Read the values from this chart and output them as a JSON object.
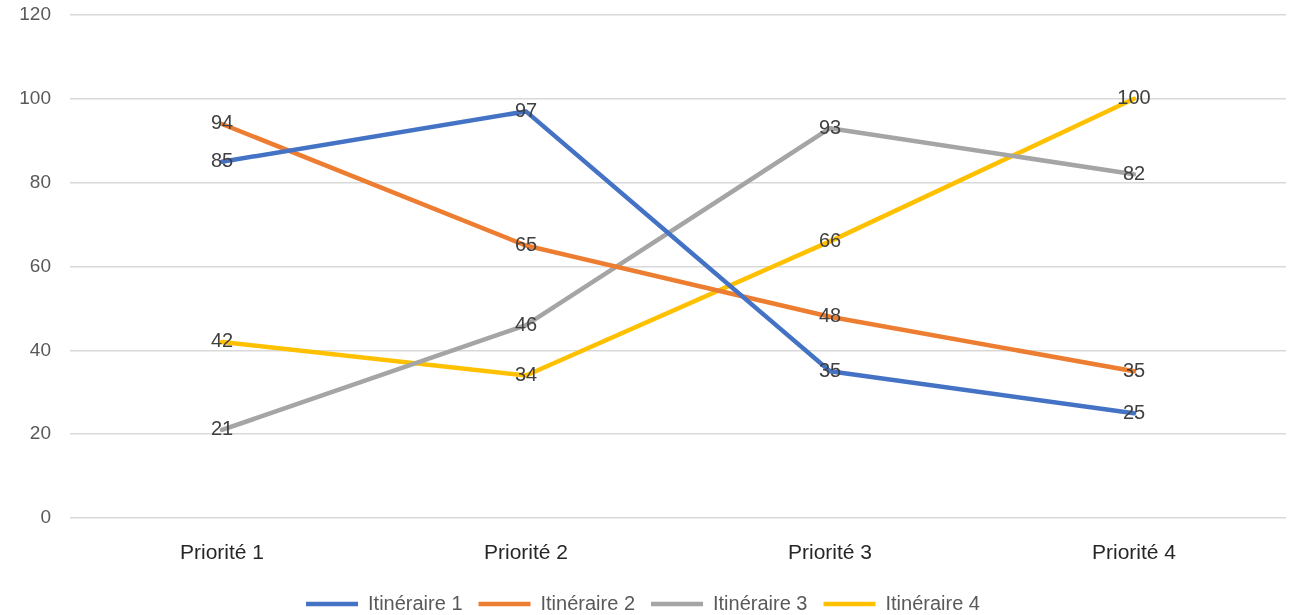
{
  "chart_data": {
    "type": "line",
    "categories": [
      "Priorité 1",
      "Priorité 2",
      "Priorité 3",
      "Priorité 4"
    ],
    "series": [
      {
        "name": "Itinéraire 1",
        "color": "#4472c4",
        "values": [
          85,
          97,
          35,
          25
        ]
      },
      {
        "name": "Itinéraire 2",
        "color": "#ed7d31",
        "values": [
          94,
          65,
          48,
          35
        ]
      },
      {
        "name": "Itinéraire 3",
        "color": "#a5a5a5",
        "values": [
          21,
          46,
          93,
          82
        ]
      },
      {
        "name": "Itinéraire 4",
        "color": "#ffc000",
        "values": [
          42,
          34,
          66,
          100
        ]
      }
    ],
    "ylim": [
      0,
      120
    ],
    "yticks": [
      0,
      20,
      40,
      60,
      80,
      100,
      120
    ],
    "grid": "y",
    "legend": "bottom",
    "marker": "none",
    "line_style": "solid",
    "data_labels": true
  }
}
